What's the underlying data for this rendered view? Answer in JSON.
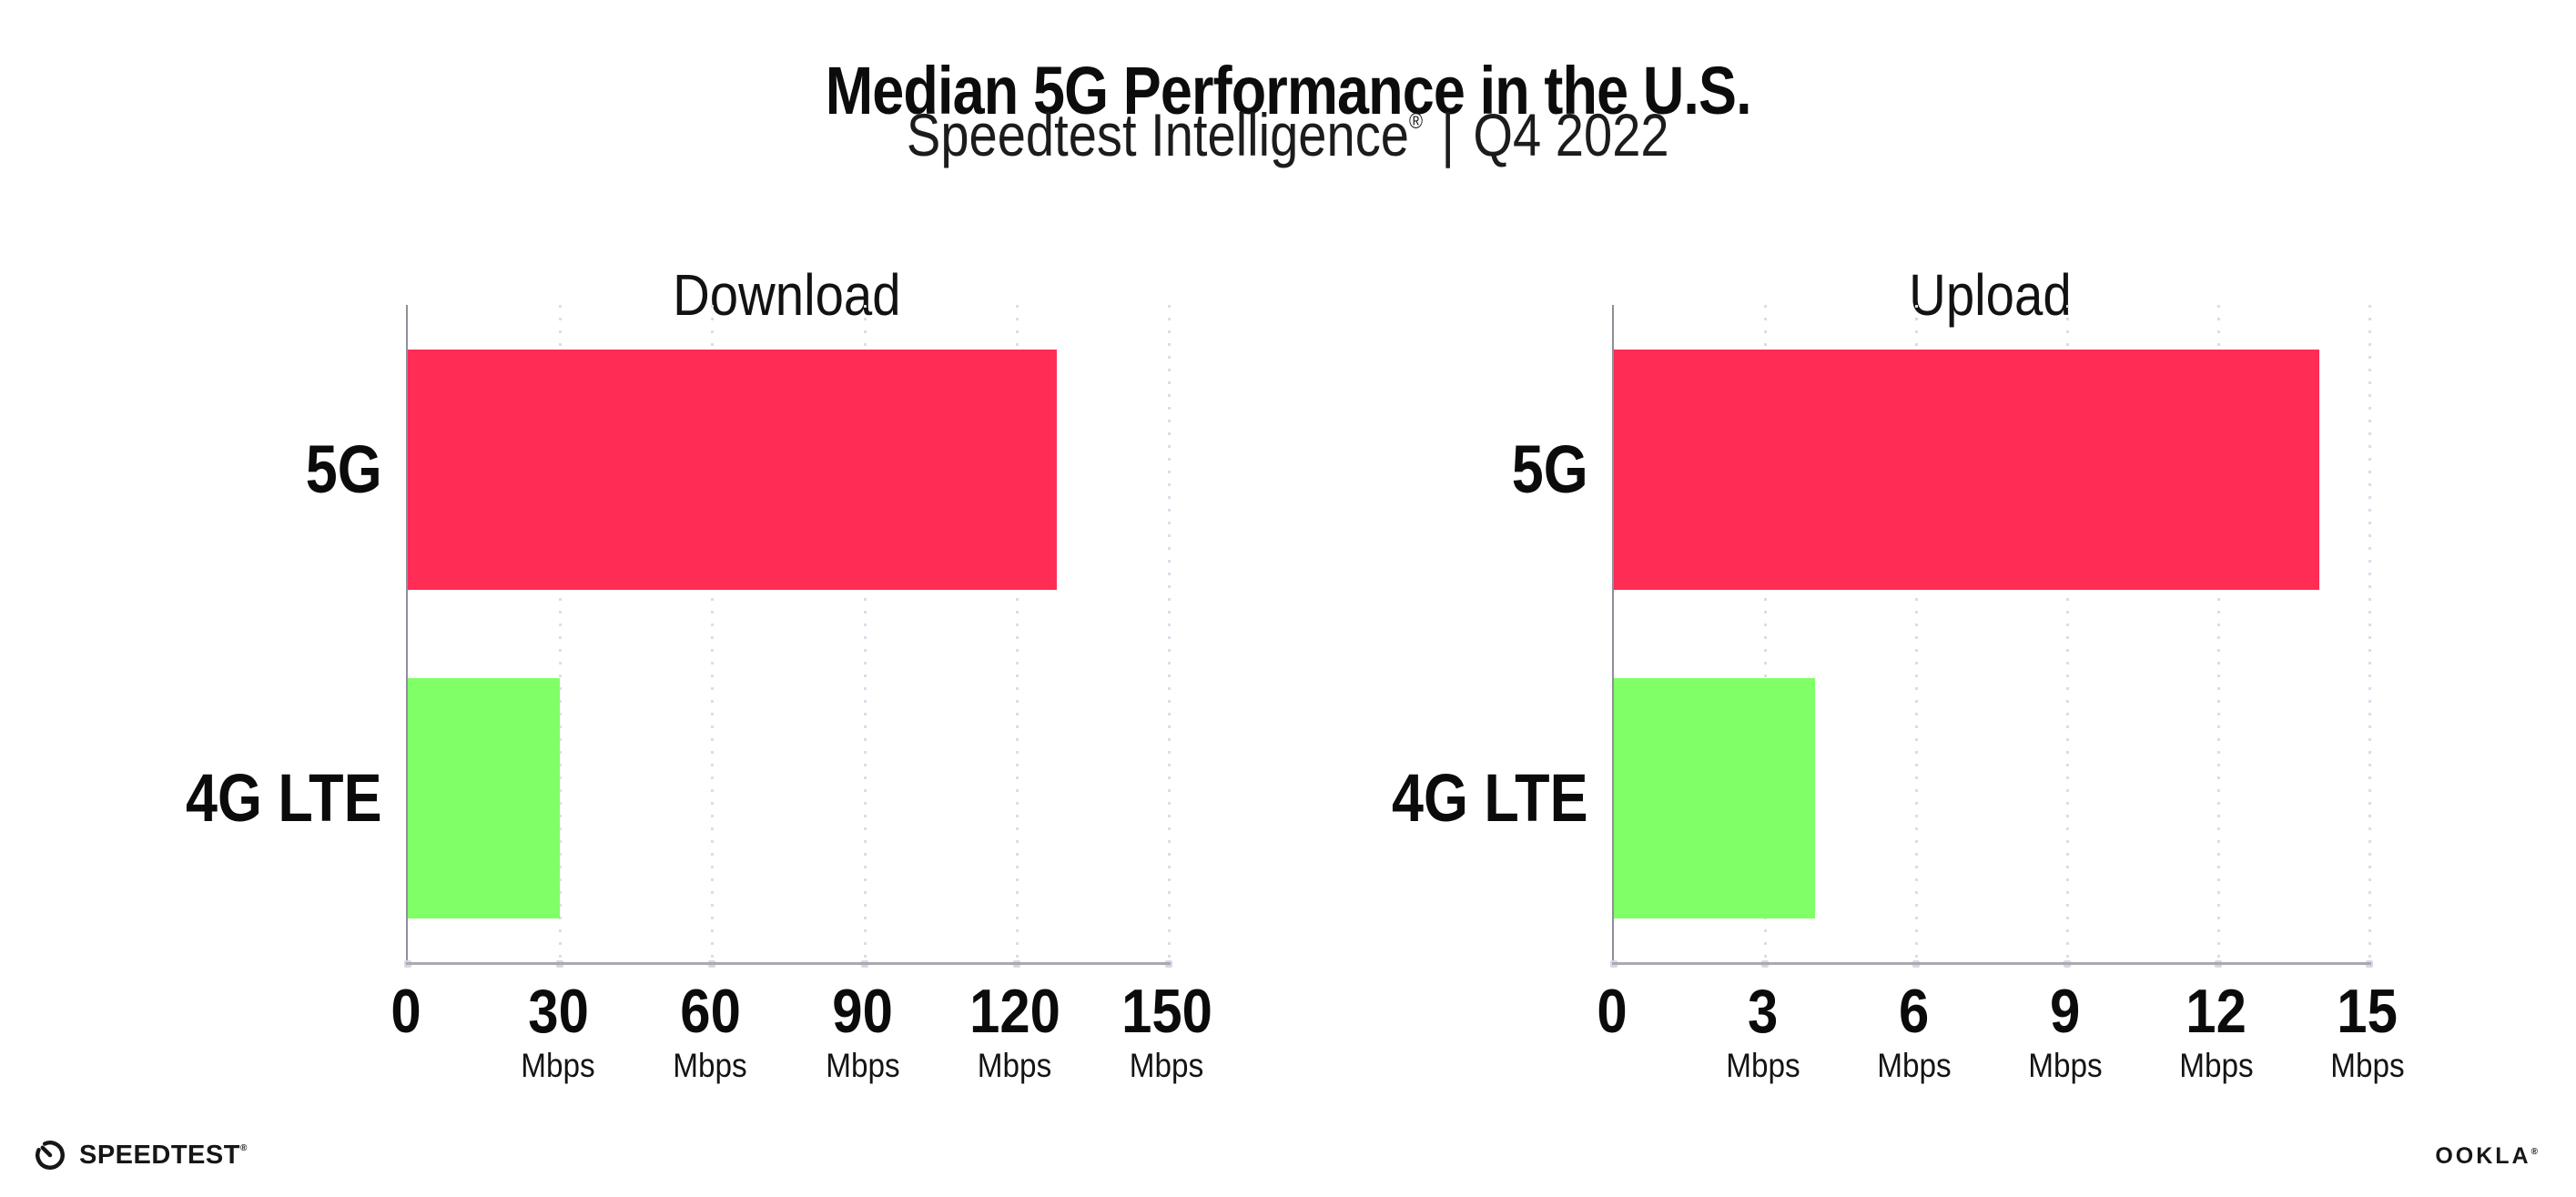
{
  "page": {
    "background": "#ffffff"
  },
  "header": {
    "title": "Median 5G Performance in the U.S.",
    "subtitle": {
      "brand": "Speedtest Intelligence",
      "registered_mark": "®",
      "separator": "|",
      "period": "Q4 2022"
    }
  },
  "chart_data": [
    {
      "type": "bar",
      "orientation": "horizontal",
      "title": "Download",
      "categories": [
        "5G",
        "4G LTE"
      ],
      "values": [
        128,
        30
      ],
      "unit": "Mbps",
      "xlim": [
        0,
        150
      ],
      "xticks": [
        0,
        30,
        60,
        90,
        120,
        150
      ],
      "series_colors": [
        "#ff2d55",
        "#80ff66"
      ],
      "grid": "vertical-dotted",
      "legend": "none"
    },
    {
      "type": "bar",
      "orientation": "horizontal",
      "title": "Upload",
      "categories": [
        "5G",
        "4G LTE"
      ],
      "values": [
        14,
        4
      ],
      "unit": "Mbps",
      "xlim": [
        0,
        15
      ],
      "xticks": [
        0,
        3,
        6,
        9,
        12,
        15
      ],
      "series_colors": [
        "#ff2d55",
        "#80ff66"
      ],
      "grid": "vertical-dotted",
      "legend": "none"
    }
  ],
  "footer": {
    "speedtest_logo_text": "SPEEDTEST",
    "speedtest_registered_mark": "®",
    "speedtest_icon": "gauge-icon",
    "ookla_logo_text": "OOKLA",
    "ookla_registered_mark": "®"
  },
  "colors": {
    "bar_5g": "#ff2d55",
    "bar_4g_lte": "#80ff66",
    "gridline": "#dcdce9",
    "axis": "#a9a9b1",
    "text": "#111111"
  }
}
